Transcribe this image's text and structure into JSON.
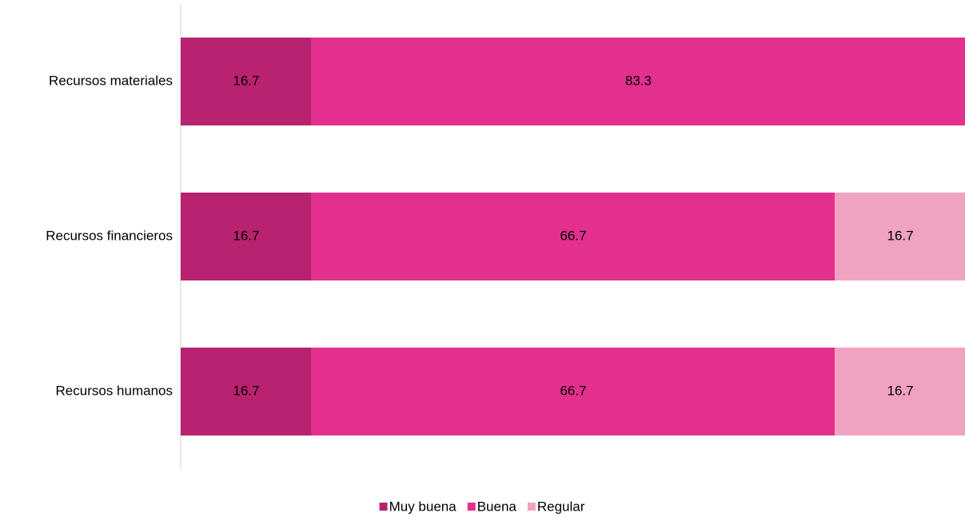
{
  "chart_data": {
    "type": "stacked-barh",
    "categories": [
      "Recursos materiales",
      "Recursos financieros",
      "Recursos humanos"
    ],
    "series": [
      {
        "name": "Muy buena",
        "color": "#b8226f",
        "values": [
          16.7,
          16.7,
          16.7
        ]
      },
      {
        "name": "Buena",
        "color": "#e3308f",
        "values": [
          83.3,
          66.7,
          66.7
        ]
      },
      {
        "name": "Regular",
        "color": "#f0a3c0",
        "values": [
          null,
          16.7,
          16.7
        ]
      }
    ],
    "xlim": [
      0,
      100
    ],
    "legend": "bottom"
  }
}
